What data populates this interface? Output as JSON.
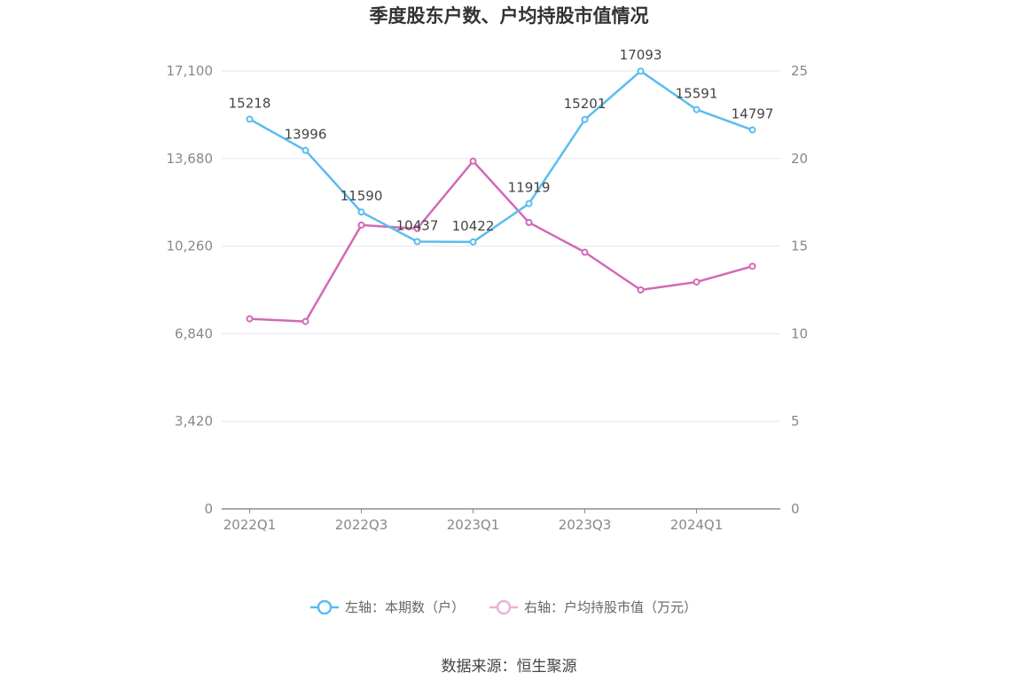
{
  "chart_data": {
    "type": "line",
    "title": "季度股东户数、户均持股市值情况",
    "categories": [
      "2022Q1",
      "2022Q2",
      "2022Q3",
      "2022Q4",
      "2023Q1",
      "2023Q2",
      "2023Q3",
      "2023Q4",
      "2024Q1",
      "2024Q2"
    ],
    "x_tick_labels": [
      "2022Q1",
      "2022Q3",
      "2023Q1",
      "2023Q3",
      "2024Q1"
    ],
    "left_axis": {
      "ticks": [
        "0",
        "3,420",
        "6,840",
        "10,260",
        "13,680",
        "17,100"
      ],
      "ylim": [
        0,
        17100
      ]
    },
    "right_axis": {
      "ticks": [
        "0",
        "5",
        "10",
        "15",
        "20",
        "25"
      ],
      "ylim": [
        0,
        25
      ]
    },
    "grid": true,
    "legend_position": "bottom",
    "series": [
      {
        "name": "左轴：本期数（户）",
        "axis": "left",
        "color": "#5bbcef",
        "values": [
          15218,
          13996,
          11590,
          10437,
          10422,
          11919,
          15201,
          17093,
          15591,
          14797
        ],
        "labels": [
          "15218",
          "13996",
          "11590",
          "10437",
          "10422",
          "11919",
          "15201",
          "17093",
          "15591",
          "14797"
        ]
      },
      {
        "name": "右轴：户均持股市值（万元）",
        "axis": "right",
        "color": "#d369b5",
        "values": [
          10.85,
          10.7,
          16.2,
          16.0,
          19.85,
          16.35,
          14.65,
          12.5,
          12.95,
          13.85
        ]
      }
    ]
  },
  "source": "数据来源：恒生聚源"
}
